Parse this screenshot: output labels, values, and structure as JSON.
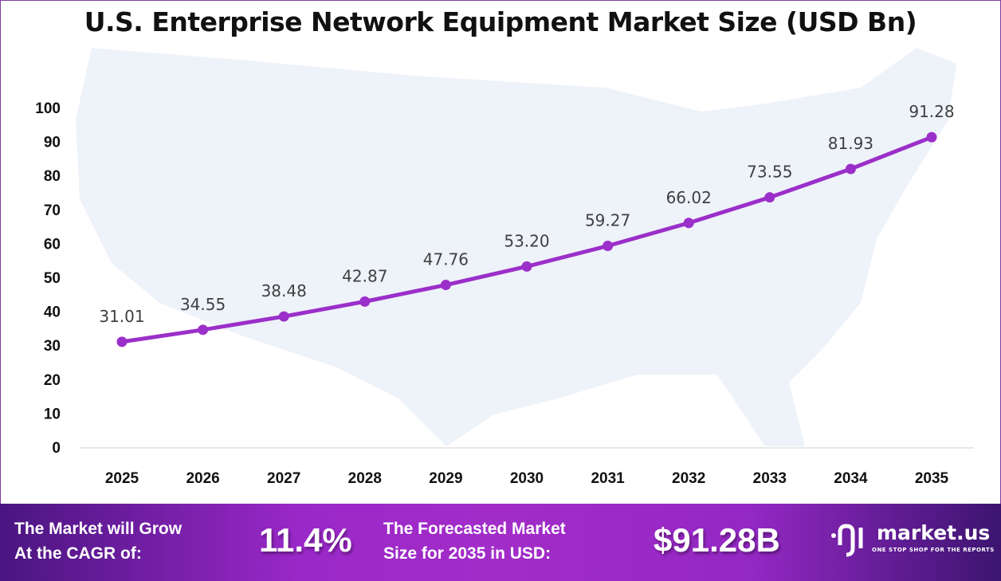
{
  "chart_data": {
    "type": "line",
    "title": "U.S. Enterprise Network Equipment Market Size (USD Bn)",
    "categories": [
      "2025",
      "2026",
      "2027",
      "2028",
      "2029",
      "2030",
      "2031",
      "2032",
      "2033",
      "2034",
      "2035"
    ],
    "values": [
      31.01,
      34.55,
      38.48,
      42.87,
      47.76,
      53.2,
      59.27,
      66.02,
      73.55,
      81.93,
      91.28
    ],
    "data_labels": [
      "31.01",
      "34.55",
      "38.48",
      "42.87",
      "47.76",
      "53.20",
      "59.27",
      "66.02",
      "73.55",
      "81.93",
      "91.28"
    ],
    "yticks": [
      0,
      10,
      20,
      30,
      40,
      50,
      60,
      70,
      80,
      90,
      100
    ],
    "ylim": [
      0,
      100
    ],
    "grid": false,
    "line_color": "#9b2fc9"
  },
  "footer": {
    "cagr_label_1": "The Market will Grow",
    "cagr_label_2": "At the CAGR of:",
    "cagr_value": "11.4%",
    "forecast_label_1": "The Forecasted Market",
    "forecast_label_2": "Size for 2035 in USD:",
    "forecast_value": "$91.28B",
    "logo_name": "market.us",
    "logo_tagline": "ONE STOP SHOP FOR THE REPORTS"
  }
}
